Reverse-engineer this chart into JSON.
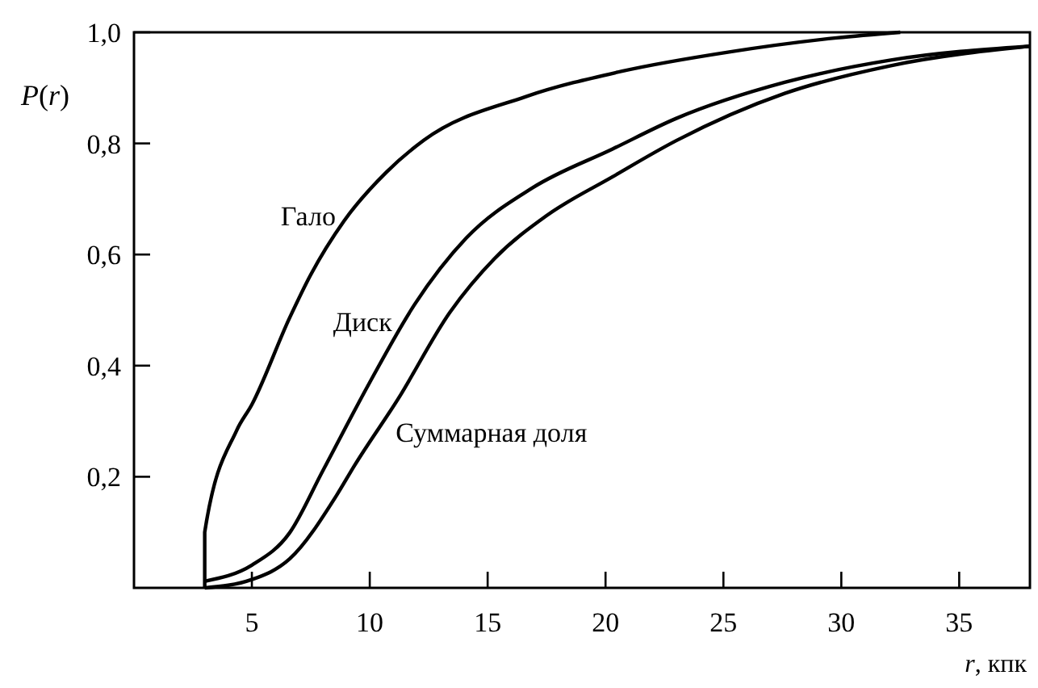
{
  "chart_data": {
    "type": "line",
    "xlabel": "r, кпк",
    "ylabel": "P(r)",
    "xlim": [
      0,
      38
    ],
    "ylim": [
      0,
      1
    ],
    "xticks": [
      5,
      10,
      15,
      20,
      25,
      30,
      35
    ],
    "yticks": [
      {
        "value": 0.2,
        "label": "0,2"
      },
      {
        "value": 0.4,
        "label": "0,4"
      },
      {
        "value": 0.6,
        "label": "0,6"
      },
      {
        "value": 0.8,
        "label": "0,8"
      },
      {
        "value": 1,
        "label": "1,0"
      }
    ],
    "grid": false,
    "marker": "none",
    "line_style": "solid",
    "series": [
      {
        "name": "Гало",
        "color": "#000000",
        "x": [
          3,
          3,
          4.35,
          5,
          6.6,
          7.5,
          8.9,
          10.7,
          12.3,
          16.6,
          20.7,
          25.3,
          29.8,
          32.5
        ],
        "values": [
          0,
          0.1,
          0.283,
          0.33,
          0.486,
          0.564,
          0.66,
          0.748,
          0.806,
          0.884,
          0.93,
          0.965,
          0.99,
          1
        ]
      },
      {
        "name": "Диск",
        "color": "#000000",
        "x": [
          3,
          5,
          6.6,
          8,
          10,
          11.9,
          14.1,
          16.9,
          20.3,
          23,
          27.6,
          32.1,
          38
        ],
        "values": [
          0.012,
          0.041,
          0.099,
          0.21,
          0.37,
          0.51,
          0.63,
          0.72,
          0.79,
          0.845,
          0.91,
          0.95,
          0.975
        ]
      },
      {
        "name": "Суммарная доля",
        "color": "#000000",
        "x": [
          3,
          5,
          6.6,
          8.6,
          9.35,
          11.2,
          13.4,
          15.3,
          17.5,
          20.3,
          23,
          27.6,
          32.1,
          38
        ],
        "values": [
          0,
          0.015,
          0.052,
          0.167,
          0.22,
          0.34,
          0.496,
          0.593,
          0.67,
          0.74,
          0.805,
          0.89,
          0.94,
          0.975
        ]
      }
    ]
  }
}
